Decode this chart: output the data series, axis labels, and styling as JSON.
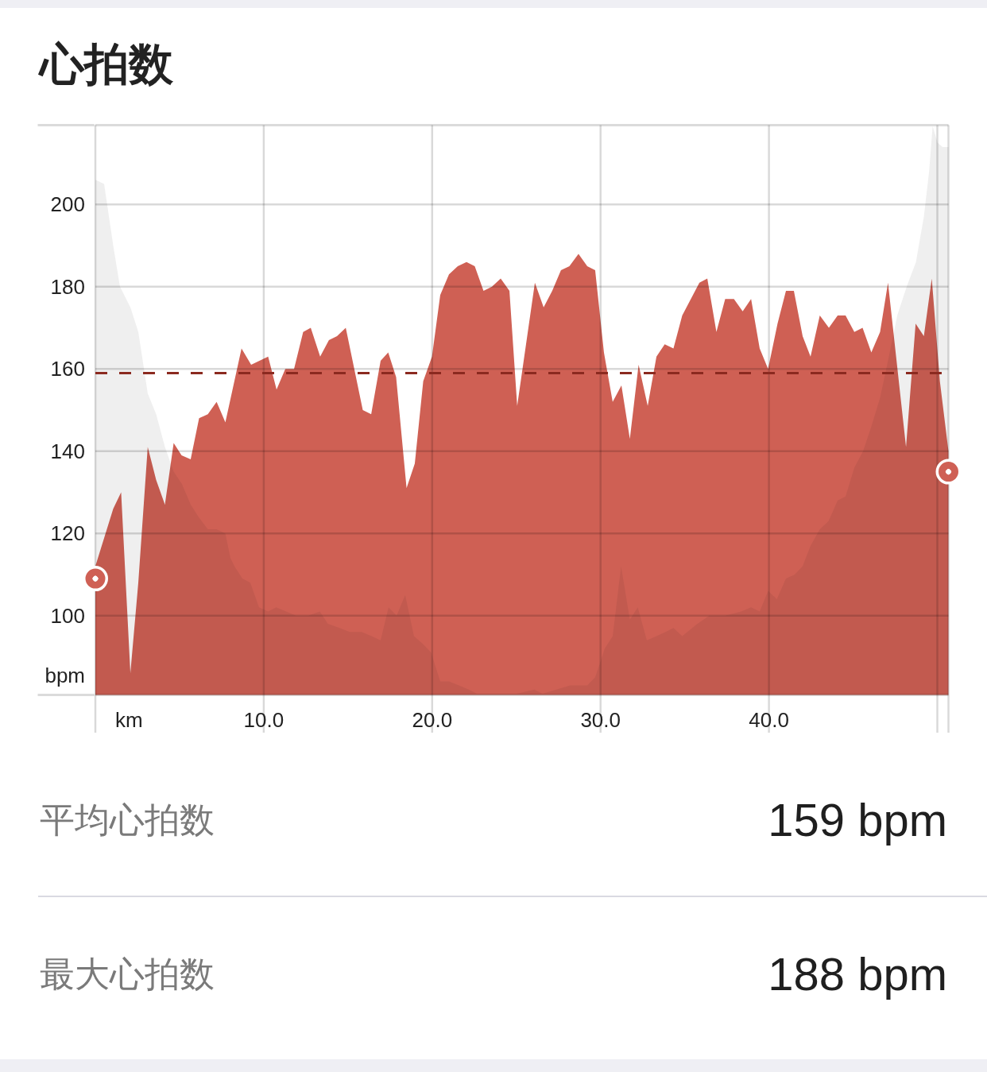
{
  "chart_data": {
    "type": "area",
    "title": "心拍数",
    "xlabel": "km",
    "ylabel": "bpm",
    "xlim": [
      0,
      50.66
    ],
    "xticks": [
      {
        "value": 0,
        "label": null
      },
      {
        "value": 10,
        "label": "10.0"
      },
      {
        "value": 20,
        "label": "20.0"
      },
      {
        "value": 30,
        "label": "30.0"
      },
      {
        "value": 40,
        "label": "40.0"
      },
      {
        "value": 50,
        "label": null
      },
      {
        "value": 50.66,
        "label": null
      }
    ],
    "ylim": [
      80.7,
      219.3
    ],
    "yticks": [
      100,
      120,
      140,
      160,
      180,
      200
    ],
    "grid": true,
    "series": [
      {
        "color": "#cf6054",
        "x": [
          0,
          1.06,
          1.53,
          2.08,
          2.55,
          3.11,
          3.61,
          4.13,
          4.65,
          5.12,
          5.66,
          6.16,
          6.68,
          7.2,
          7.72,
          8.68,
          9.25,
          10.26,
          10.76,
          11.28,
          11.8,
          12.34,
          12.79,
          13.35,
          13.87,
          14.35,
          14.87,
          15.88,
          16.38,
          16.94,
          17.39,
          17.86,
          18.48,
          18.97,
          19.47,
          19.99,
          20.48,
          21,
          21.52,
          22.04,
          22.53,
          23.05,
          23.55,
          24.07,
          24.59,
          25.05,
          26.1,
          26.62,
          27.13,
          27.65,
          28.15,
          28.69,
          29.21,
          29.68,
          30.2,
          30.72,
          31.24,
          31.74,
          32.26,
          32.8,
          33.32,
          33.81,
          34.33,
          34.85,
          35.87,
          36.34,
          36.88,
          37.4,
          37.92,
          38.44,
          38.94,
          39.45,
          39.95,
          40.51,
          41.01,
          41.48,
          42,
          42.47,
          43.02,
          43.56,
          44.08,
          44.55,
          45.07,
          45.56,
          46.08,
          46.6,
          47.07,
          48.14,
          48.71,
          49.2,
          49.67,
          50.15,
          50.66
        ],
        "values": [
          112,
          126,
          130,
          86,
          108,
          141,
          133,
          127,
          142,
          139,
          138,
          148,
          149,
          152,
          147,
          165,
          161,
          163,
          155,
          160,
          160,
          169,
          170,
          163,
          167,
          168,
          170,
          150,
          149,
          162,
          164,
          158,
          131,
          137,
          157,
          163,
          178,
          183,
          185,
          186,
          185,
          179,
          180,
          182,
          179,
          151,
          181,
          175,
          179,
          184,
          185,
          188,
          185,
          184,
          164,
          152,
          156,
          143,
          161,
          151,
          163,
          166,
          165,
          173,
          181,
          182,
          169,
          177,
          177,
          174,
          177,
          165,
          160,
          171,
          179,
          179,
          168,
          163,
          173,
          170,
          173,
          173,
          169,
          170,
          164,
          169,
          181,
          141,
          171,
          168,
          182,
          157,
          140
        ]
      },
      {
        "color": "#efefef",
        "x": [
          0,
          0.52,
          1.06,
          1.46,
          2.08,
          2.55,
          3.11,
          3.61,
          4.13,
          4.65,
          5.14,
          5.66,
          6.13,
          6.68,
          7.2,
          7.72,
          8.02,
          8.26,
          8.73,
          9.2,
          9.72,
          10.26,
          10.74,
          11.33,
          11.92,
          12.63,
          13.33,
          13.81,
          14.51,
          15.1,
          15.81,
          16.4,
          16.94,
          17.41,
          17.89,
          18.4,
          18.92,
          19.47,
          19.94,
          20.48,
          21,
          21.59,
          22.18,
          22.65,
          25.01,
          26.07,
          26.55,
          27.37,
          28.2,
          29.21,
          29.68,
          30.01,
          30.25,
          30.72,
          31.22,
          31.74,
          32.21,
          32.75,
          33.32,
          33.86,
          34.33,
          34.85,
          35.75,
          36.46,
          37.4,
          38.35,
          38.94,
          39.45,
          39.95,
          40.47,
          41.01,
          41.53,
          42,
          42.47,
          43.02,
          43.54,
          44.08,
          44.55,
          45.07,
          45.59,
          46.08,
          46.6,
          47.07,
          47.62,
          48.18,
          48.73,
          49.2,
          49.51,
          49.72,
          50.02,
          50.31,
          50.66
        ],
        "values": [
          206,
          205,
          190,
          180,
          175,
          169,
          154,
          149,
          141,
          135,
          132,
          127,
          124,
          121,
          121,
          120,
          114,
          112,
          109,
          108,
          102,
          101,
          102,
          101,
          100,
          100,
          101,
          98,
          97,
          96,
          96,
          95,
          94,
          102,
          100,
          105,
          95,
          93,
          91,
          84,
          84,
          83,
          82,
          81,
          81,
          82,
          81,
          82,
          83,
          83,
          85,
          89,
          92,
          95,
          112,
          99,
          102,
          94,
          95,
          96,
          97,
          95,
          98,
          100,
          100,
          101,
          102,
          101,
          106,
          104,
          109,
          110,
          112,
          117,
          121,
          123,
          128,
          129,
          136,
          140,
          146,
          153,
          162,
          173,
          180,
          186,
          197,
          208,
          219,
          215,
          214,
          214
        ]
      },
      {
        "type": "scatter",
        "color": "#cf6054",
        "marker": "circle",
        "x": [
          0,
          50.66
        ],
        "values": [
          109,
          135
        ]
      }
    ],
    "ref_lines": [
      {
        "axis": "y",
        "value": 159,
        "label": null,
        "color": "#8b2a20",
        "line_style": "dashed"
      }
    ],
    "annotations": [
      "平均心拍数",
      "159 bpm",
      "最大心拍数",
      "188 bpm"
    ]
  }
}
